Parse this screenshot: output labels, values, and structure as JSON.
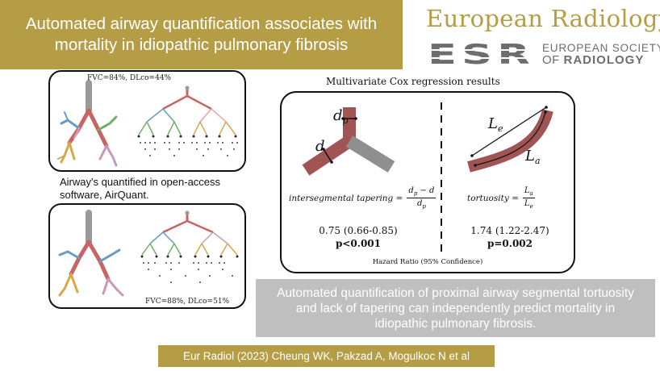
{
  "header": {
    "title_line1": "Automated airway quantification associates with",
    "title_line2": "mortality in idiopathic pulmonary fibrosis",
    "journal": "European Radiology",
    "esr_logo_text": "ESR",
    "society_line1": "EUROPEAN SOCIETY",
    "society_of": "OF",
    "society_radiology": "RADIOLOGY",
    "colors": {
      "gold": "#b49d45",
      "grey": "#bfbfbf",
      "logo_grey": "#6d6d6d"
    }
  },
  "examples": {
    "top_label": "FVC=84%, DLco=44%",
    "bottom_label": "FVC=88%, DLco=51%",
    "caption_line1": "Airway's quantified in open-access",
    "caption_line2": "software, AirQuant."
  },
  "cox": {
    "heading": "Multivariate Cox regression results",
    "diagram_labels": {
      "dp": "d",
      "dp_sub": "p",
      "d": "d",
      "le": "L",
      "le_sub": "e",
      "la": "L",
      "la_sub": "a"
    },
    "left": {
      "formula_lhs": "intersegmental tapering =",
      "formula_num": "d",
      "formula_num_sub": "p",
      "formula_num_rest": " − d",
      "formula_den": "d",
      "formula_den_sub": "p",
      "hazard_ratio": "0.75 (0.66-0.85)",
      "p_value": "p<0.001"
    },
    "right": {
      "formula_lhs": "tortuosity =",
      "formula_num": "L",
      "formula_num_sub": "a",
      "formula_den": "L",
      "formula_den_sub": "e",
      "hazard_ratio": "1.74 (1.22-2.47)",
      "p_value": "p=0.002"
    },
    "caption": "Hazard Ratio (95% Confidence)"
  },
  "conclusion": {
    "line1": "Automated quantification of proximal airway segmental tortuosity",
    "line2": "and lack of tapering can independently predict mortality in",
    "line3": "idiopathic pulmonary fibrosis."
  },
  "citation": "Eur Radiol (2023) Cheung WK, Pakzad A, Mogulkoc N et al"
}
